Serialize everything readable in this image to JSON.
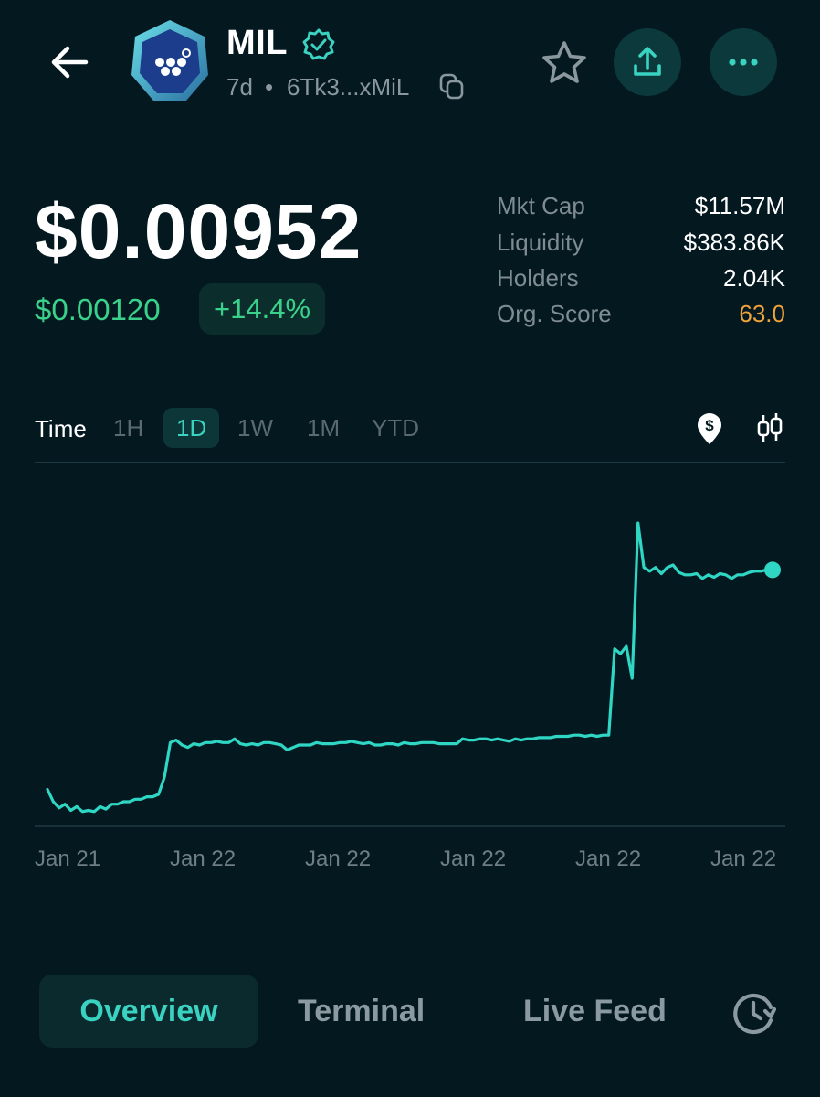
{
  "header": {
    "back_icon": "arrow-left-icon",
    "token_symbol": "MIL",
    "verified_icon": "verified-badge-icon",
    "age": "7d",
    "separator": "•",
    "address": "6Tk3...xMiL",
    "copy_icon": "copy-icon",
    "favorite_icon": "star-outline-icon",
    "share_icon": "share-upload-icon",
    "more_icon": "more-dots-icon"
  },
  "price": {
    "current": "$0.00952",
    "change_abs": "$0.00120",
    "change_pct": "+14.4%"
  },
  "stats": [
    {
      "label": "Mkt Cap",
      "value": "$11.57M"
    },
    {
      "label": "Liquidity",
      "value": "$383.86K"
    },
    {
      "label": "Holders",
      "value": "2.04K"
    },
    {
      "label": "Org. Score",
      "value": "63.0"
    }
  ],
  "timeframes": {
    "label": "Time",
    "options": [
      "1H",
      "1D",
      "1W",
      "1M",
      "YTD"
    ],
    "selected": "1D",
    "dollar_toggle_icon": "dollar-pin-icon",
    "candle_toggle_icon": "candlestick-icon"
  },
  "colors": {
    "accent": "#3ad2c0",
    "positive": "#3ad28a",
    "score": "#f0a33a",
    "line": "#2fd6c3",
    "background": "#041820"
  },
  "chart_data": {
    "type": "line",
    "x_tick_labels": [
      "Jan 21",
      "Jan 22",
      "Jan 22",
      "Jan 22",
      "Jan 22",
      "Jan 22"
    ],
    "series": [
      {
        "values": [
          0.0075,
          0.0074,
          0.00735,
          0.00738,
          0.00733,
          0.00736,
          0.00732,
          0.00733,
          0.00732,
          0.00736,
          0.00734,
          0.00738,
          0.00738,
          0.0074,
          0.0074,
          0.00742,
          0.00742,
          0.00744,
          0.00744,
          0.00746,
          0.0076,
          0.00788,
          0.0079,
          0.00786,
          0.00784,
          0.00787,
          0.00786,
          0.00788,
          0.00788,
          0.00789,
          0.00788,
          0.00788,
          0.00791,
          0.00787,
          0.00786,
          0.00787,
          0.00786,
          0.00788,
          0.00788,
          0.00787,
          0.00786,
          0.00782,
          0.00784,
          0.00786,
          0.00786,
          0.00786,
          0.00788,
          0.00787,
          0.00787,
          0.00787,
          0.00788,
          0.00788,
          0.00789,
          0.00788,
          0.00787,
          0.00788,
          0.00786,
          0.00786,
          0.00787,
          0.00787,
          0.00786,
          0.00788,
          0.00787,
          0.00787,
          0.00788,
          0.00788,
          0.00788,
          0.00787,
          0.00787,
          0.00787,
          0.00787,
          0.00791,
          0.0079,
          0.0079,
          0.00791,
          0.00791,
          0.0079,
          0.00791,
          0.0079,
          0.00789,
          0.00791,
          0.0079,
          0.00791,
          0.00791,
          0.00792,
          0.00792,
          0.00792,
          0.00793,
          0.00793,
          0.00793,
          0.00794,
          0.00794,
          0.00793,
          0.00794,
          0.00793,
          0.00794,
          0.00794,
          0.00864,
          0.0086,
          0.00866,
          0.0084,
          0.00966,
          0.0093,
          0.00927,
          0.0093,
          0.00925,
          0.0093,
          0.00932,
          0.00926,
          0.00924,
          0.00924,
          0.00925,
          0.00921,
          0.00924,
          0.00922,
          0.00925,
          0.00924,
          0.00921,
          0.00924,
          0.00924,
          0.00926,
          0.00927,
          0.00927,
          0.00928,
          0.00928
        ],
        "last_value": 0.00928
      }
    ],
    "ylim": [
      0.0072,
      0.00975
    ],
    "grid": false
  },
  "tabs": [
    {
      "label": "Overview",
      "active": true
    },
    {
      "label": "Terminal",
      "active": false
    },
    {
      "label": "Live Feed",
      "active": false
    }
  ],
  "history_icon": "history-clock-icon"
}
